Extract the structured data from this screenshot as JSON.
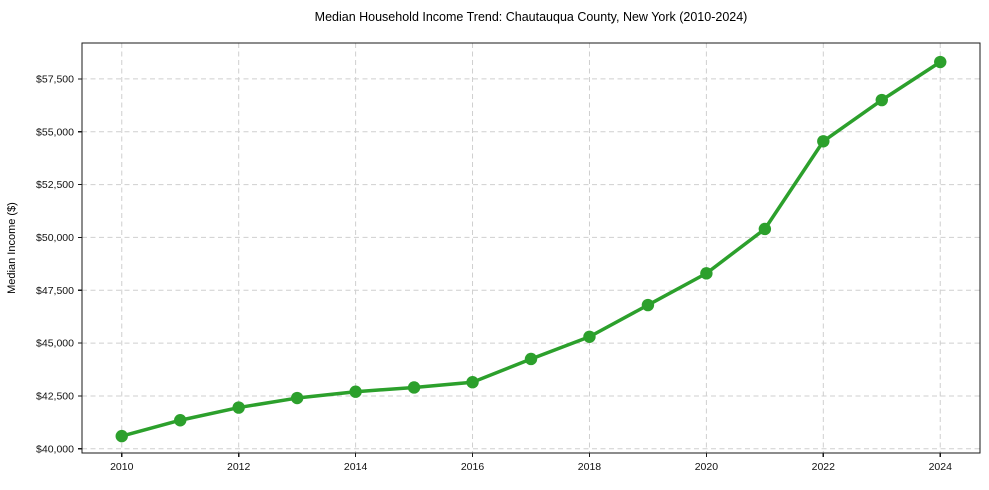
{
  "chart_data": {
    "type": "line",
    "title": "Median Household Income Trend: Chautauqua County, New York (2010-2024)",
    "xlabel": "",
    "ylabel": "Median Income ($)",
    "series": [
      {
        "name": "Median Household Income",
        "x": [
          2010,
          2011,
          2012,
          2013,
          2014,
          2015,
          2016,
          2017,
          2018,
          2019,
          2020,
          2021,
          2022,
          2023,
          2024
        ],
        "values": [
          40600,
          41350,
          41950,
          42400,
          42700,
          42900,
          43150,
          44250,
          45300,
          46800,
          48300,
          50400,
          54550,
          56500,
          58300
        ]
      }
    ],
    "xlim": [
      2009.32,
      2024.68
    ],
    "ylim": [
      39800,
      59200
    ],
    "x_ticks": [
      2010,
      2012,
      2014,
      2016,
      2018,
      2020,
      2022,
      2024
    ],
    "x_tick_labels": [
      "2010",
      "2012",
      "2014",
      "2016",
      "2018",
      "2020",
      "2022",
      "2024"
    ],
    "y_ticks": [
      40000,
      42500,
      45000,
      47500,
      50000,
      52500,
      55000,
      57500
    ],
    "y_tick_labels": [
      "$40,000",
      "$42,500",
      "$45,000",
      "$47,500",
      "$50,000",
      "$52,500",
      "$55,000",
      "$57,500"
    ],
    "grid": true,
    "grid_style": "dashed",
    "legend": "none",
    "marker": "circle",
    "colors": {
      "line": "#2ca02c",
      "marker": "#2ca02c",
      "grid": "#cfcfcf",
      "spine": "#1a1a1a",
      "tick": "#1a1a1a",
      "background": "#ffffff"
    }
  }
}
